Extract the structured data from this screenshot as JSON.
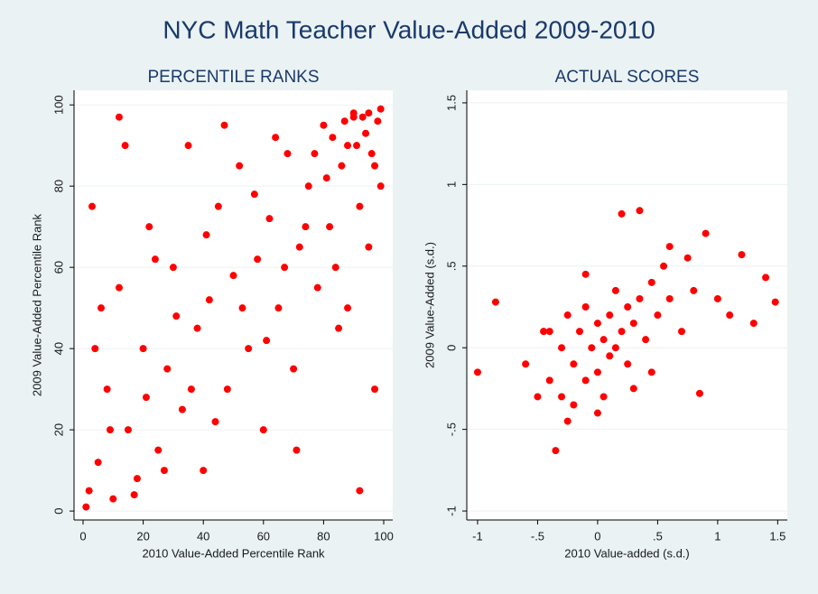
{
  "title": "NYC Math Teacher Value-Added 2009-2010",
  "chart_data": [
    {
      "type": "scatter",
      "title": "PERCENTILE RANKS",
      "x_label": "2010 Value-Added Percentile Rank",
      "y_label": "2009 Value-Added Percentile Rank",
      "color": "#ff0000",
      "grid": true,
      "xlim": [
        -3,
        103
      ],
      "ylim": [
        -2.2,
        103.6
      ],
      "xticks": [
        0,
        20,
        40,
        60,
        80,
        100
      ],
      "yticks": [
        0,
        20,
        40,
        60,
        80,
        100
      ],
      "x": [
        2,
        5,
        8,
        10,
        12,
        15,
        18,
        20,
        22,
        25,
        28,
        30,
        33,
        35,
        38,
        40,
        42,
        45,
        48,
        50,
        52,
        55,
        58,
        60,
        62,
        65,
        68,
        70,
        72,
        75,
        78,
        80,
        82,
        85,
        88,
        90,
        92,
        95,
        97,
        99,
        1,
        3,
        6,
        9,
        14,
        17,
        21,
        24,
        27,
        31,
        36,
        41,
        44,
        47,
        53,
        57,
        61,
        64,
        67,
        71,
        74,
        77,
        81,
        84,
        87,
        91,
        94,
        96,
        98,
        99,
        90,
        93,
        86,
        83,
        95,
        97,
        92,
        88,
        12,
        4
      ],
      "values": [
        5,
        12,
        30,
        3,
        55,
        20,
        8,
        40,
        70,
        15,
        35,
        60,
        25,
        90,
        45,
        10,
        52,
        75,
        30,
        58,
        85,
        40,
        62,
        20,
        72,
        50,
        88,
        35,
        65,
        80,
        55,
        95,
        70,
        45,
        90,
        97,
        75,
        98,
        85,
        99,
        1,
        75,
        50,
        20,
        90,
        4,
        28,
        62,
        10,
        48,
        30,
        68,
        22,
        95,
        50,
        78,
        42,
        92,
        60,
        15,
        70,
        88,
        82,
        60,
        96,
        90,
        93,
        88,
        96,
        80,
        98,
        97,
        85,
        92,
        65,
        30,
        5,
        50,
        97,
        40
      ]
    },
    {
      "type": "scatter",
      "title": "ACTUAL SCORES",
      "x_label": "2010 Value-added (s.d.)",
      "y_label": "2009 Value-Added (s.d.)",
      "color": "#ff0000",
      "grid": true,
      "xlim": [
        -1.09,
        1.58
      ],
      "ylim": [
        -1.055,
        1.577
      ],
      "xticks": [
        -1,
        {
          "value": -0.5,
          "label": "-.5"
        },
        0,
        {
          "value": 0.5,
          "label": ".5"
        },
        1,
        1.5
      ],
      "yticks": [
        -1,
        {
          "value": -0.5,
          "label": "-.5"
        },
        0,
        {
          "value": 0.5,
          "label": ".5"
        },
        1,
        1.5
      ],
      "x": [
        -1,
        -0.85,
        -0.6,
        -0.5,
        -0.45,
        -0.4,
        -0.35,
        -0.3,
        -0.3,
        -0.25,
        -0.2,
        -0.2,
        -0.15,
        -0.1,
        -0.1,
        -0.05,
        0,
        0,
        0.05,
        0.05,
        0.1,
        0.1,
        0.15,
        0.15,
        0.2,
        0.2,
        0.25,
        0.25,
        0.3,
        0.35,
        0.35,
        0.4,
        0.45,
        0.5,
        0.55,
        0.6,
        0.7,
        0.8,
        0.85,
        0.9,
        1.0,
        1.1,
        1.2,
        1.3,
        1.4,
        1.48,
        -0.4,
        -0.25,
        0.0,
        0.3,
        0.6,
        -0.1,
        0.45,
        0.75
      ],
      "values": [
        -0.15,
        0.28,
        -0.1,
        -0.3,
        0.1,
        -0.2,
        -0.63,
        0.0,
        -0.3,
        0.2,
        -0.1,
        -0.35,
        0.1,
        -0.2,
        0.25,
        0.0,
        -0.15,
        0.15,
        0.05,
        -0.3,
        0.2,
        -0.05,
        0.35,
        0.0,
        0.1,
        0.82,
        0.25,
        -0.1,
        0.15,
        0.84,
        0.3,
        0.05,
        0.4,
        0.2,
        0.5,
        0.3,
        0.1,
        0.35,
        -0.28,
        0.7,
        0.3,
        0.2,
        0.57,
        0.15,
        0.43,
        0.28,
        0.1,
        -0.45,
        -0.4,
        -0.25,
        0.62,
        0.45,
        -0.15,
        0.55
      ]
    }
  ]
}
